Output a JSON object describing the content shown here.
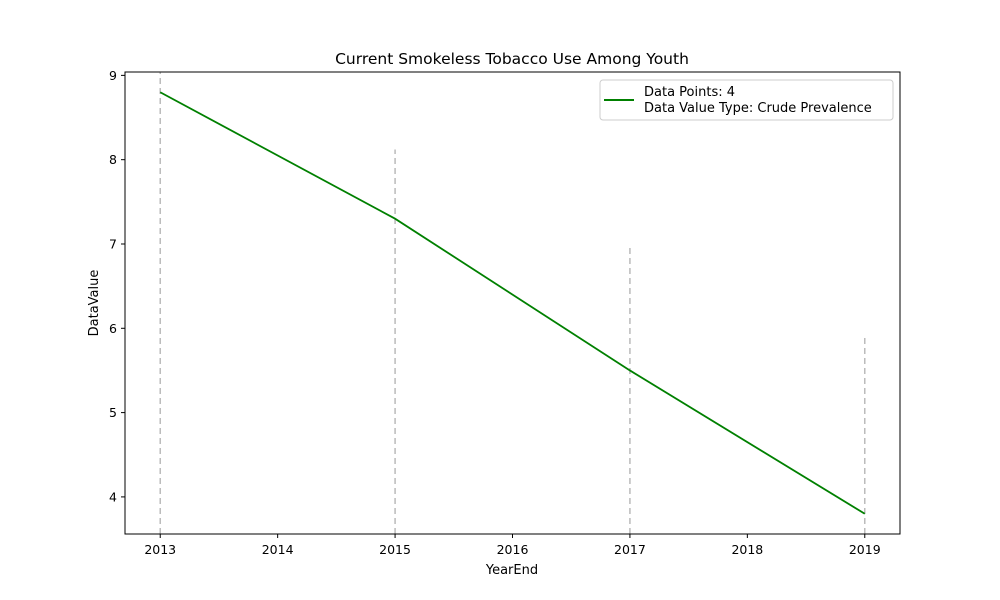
{
  "chart_data": {
    "type": "line",
    "title": "Current Smokeless Tobacco Use Among Youth",
    "xlabel": "YearEnd",
    "ylabel": "DataValue",
    "x": [
      2013,
      2015,
      2017,
      2019
    ],
    "series": [
      {
        "values": [
          8.8,
          7.3,
          5.5,
          3.8
        ],
        "color": "#008000"
      }
    ],
    "xlim": [
      2012.7,
      2019.3
    ],
    "ylim": [
      3.56,
      9.04
    ],
    "xticks": [
      2013,
      2014,
      2015,
      2016,
      2017,
      2018,
      2019
    ],
    "yticks": [
      4,
      5,
      6,
      7,
      8,
      9
    ],
    "reference_lines": {
      "style": "dashed",
      "color": "#bbbbbb",
      "x": [
        2013,
        2015,
        2017,
        2019
      ],
      "top": [
        9.04,
        8.12,
        7.0,
        5.9
      ]
    },
    "legend": {
      "placement": "top-right",
      "lines": [
        "Data Points: 4",
        "Data Value Type: Crude Prevalence"
      ]
    },
    "grid": false
  }
}
